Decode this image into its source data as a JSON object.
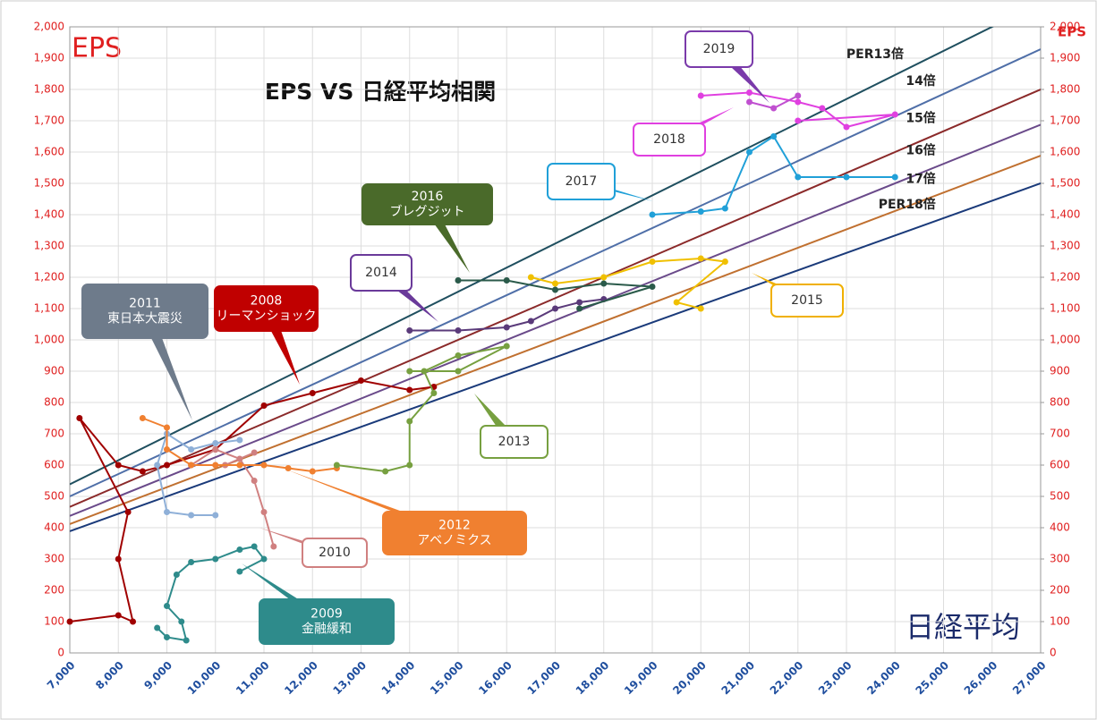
{
  "chart_data": {
    "type": "scatter",
    "title": "EPS VS 日経平均相関",
    "y_label": "EPS",
    "y2_label": "EPS",
    "x_label": "日経平均",
    "xlim": [
      7000,
      27000
    ],
    "xticks": [
      {
        "value": 7000,
        "label": "7,000"
      },
      {
        "value": 8000,
        "label": "8,000"
      },
      {
        "value": 9000,
        "label": "9,000"
      },
      {
        "value": 10000,
        "label": "10,000"
      },
      {
        "value": 11000,
        "label": "11,000"
      },
      {
        "value": 12000,
        "label": "12,000"
      },
      {
        "value": 13000,
        "label": "13,000"
      },
      {
        "value": 14000,
        "label": "14,000"
      },
      {
        "value": 15000,
        "label": "15,000"
      },
      {
        "value": 16000,
        "label": "16,000"
      },
      {
        "value": 17000,
        "label": "17,000"
      },
      {
        "value": 18000,
        "label": "18,000"
      },
      {
        "value": 19000,
        "label": "19,000"
      },
      {
        "value": 20000,
        "label": "20,000"
      },
      {
        "value": 21000,
        "label": "21,000"
      },
      {
        "value": 22000,
        "label": "22,000"
      },
      {
        "value": 23000,
        "label": "23,000"
      },
      {
        "value": 24000,
        "label": "24,000"
      },
      {
        "value": 25000,
        "label": "25,000"
      },
      {
        "value": 26000,
        "label": "26,000"
      },
      {
        "value": 27000,
        "label": "27,000"
      }
    ],
    "ylim": [
      0,
      2000
    ],
    "yticks": [
      0,
      100,
      200,
      300,
      400,
      500,
      600,
      700,
      800,
      900,
      {
        "value": 1000,
        "label": "1,000"
      },
      {
        "value": 1100,
        "label": "1,100"
      },
      {
        "value": 1200,
        "label": "1,200"
      },
      {
        "value": 1300,
        "label": "1,300"
      },
      {
        "value": 1400,
        "label": "1,400"
      },
      {
        "value": 1500,
        "label": "1,500"
      },
      {
        "value": 1600,
        "label": "1,600"
      },
      {
        "value": 1700,
        "label": "1,700"
      },
      {
        "value": 1800,
        "label": "1,800"
      },
      {
        "value": 1900,
        "label": "1,900"
      },
      {
        "value": 2000,
        "label": "2,000"
      }
    ],
    "y2lim": [
      0,
      2000
    ],
    "y2ticks": [
      0,
      100,
      200,
      300,
      400,
      500,
      600,
      700,
      800,
      900,
      {
        "value": 1000,
        "label": "1,000"
      },
      {
        "value": 1100,
        "label": "1,100"
      },
      {
        "value": 1200,
        "label": "1,200"
      },
      {
        "value": 1300,
        "label": "1,300"
      },
      {
        "value": 1400,
        "label": "1,400"
      },
      {
        "value": 1500,
        "label": "1,500"
      },
      {
        "value": 1600,
        "label": "1,600"
      },
      {
        "value": 1700,
        "label": "1,700"
      },
      {
        "value": 1800,
        "label": "1,800"
      },
      {
        "value": 1900,
        "label": "1,900"
      },
      {
        "value": 2000,
        "label": "2,000"
      }
    ],
    "grid": true,
    "per_lines": [
      {
        "label": "PER13倍",
        "per": 13,
        "color": "#1f4f5f"
      },
      {
        "label": "14倍",
        "per": 14,
        "color": "#4f6fa8"
      },
      {
        "label": "15倍",
        "per": 15,
        "color": "#8b2a2a"
      },
      {
        "label": "16倍",
        "per": 16,
        "color": "#6a4a8a"
      },
      {
        "label": "17倍",
        "per": 17,
        "color": "#c07030"
      },
      {
        "label": "PER18倍",
        "per": 18,
        "color": "#1a3a7a"
      }
    ],
    "series": [
      {
        "color": "#a00000",
        "x": [
          14500,
          14000,
          13000,
          12000,
          11000,
          10000,
          9000,
          8500,
          8000,
          7200,
          8200,
          8000,
          8300,
          8000,
          7000
        ],
        "y": [
          850,
          840,
          870,
          830,
          790,
          650,
          600,
          580,
          600,
          750,
          450,
          300,
          100,
          120,
          100
        ]
      },
      {
        "color": "#2e8b8b",
        "x": [
          8800,
          9000,
          9400,
          9300,
          9000,
          9200,
          9500,
          10000,
          10500,
          10800,
          11000,
          10500
        ],
        "y": [
          80,
          50,
          40,
          100,
          150,
          250,
          290,
          300,
          330,
          340,
          300,
          260
        ]
      },
      {
        "color": "#d08080",
        "x": [
          11200,
          11000,
          10800,
          10500,
          10000,
          9500,
          10200,
          10800
        ],
        "y": [
          340,
          450,
          550,
          620,
          650,
          600,
          600,
          640
        ]
      },
      {
        "color": "#8fb0d8",
        "x": [
          10500,
          10000,
          9500,
          9000,
          8800,
          9000,
          9500,
          10000
        ],
        "y": [
          680,
          670,
          650,
          700,
          600,
          450,
          440,
          440
        ]
      },
      {
        "color": "#f08030",
        "x": [
          8500,
          9000,
          9000,
          9500,
          10000,
          10500,
          11000,
          11500,
          12000,
          12500
        ],
        "y": [
          750,
          720,
          650,
          600,
          600,
          600,
          600,
          590,
          580,
          590
        ]
      },
      {
        "color": "#77a040",
        "x": [
          12500,
          13500,
          14000,
          14000,
          14500,
          14300,
          15000,
          16000,
          15000,
          14000
        ],
        "y": [
          600,
          580,
          600,
          740,
          830,
          900,
          950,
          980,
          900,
          900
        ]
      },
      {
        "color": "#5a3a7a",
        "x": [
          14000,
          15000,
          16000,
          16500,
          17000,
          17500,
          18000
        ],
        "y": [
          1030,
          1030,
          1040,
          1060,
          1100,
          1120,
          1130
        ]
      },
      {
        "color": "#f0c000",
        "x": [
          16500,
          17000,
          18000,
          19000,
          20000,
          20500,
          19500,
          20000
        ],
        "y": [
          1200,
          1180,
          1200,
          1250,
          1260,
          1250,
          1120,
          1100
        ]
      },
      {
        "color": "#2a5a4a",
        "x": [
          15000,
          16000,
          17000,
          18000,
          19000,
          17500
        ],
        "y": [
          1190,
          1190,
          1160,
          1180,
          1170,
          1100
        ]
      },
      {
        "color": "#20a0d8",
        "x": [
          19000,
          20000,
          20500,
          21000,
          21500,
          22000,
          23000,
          24000
        ],
        "y": [
          1400,
          1410,
          1420,
          1600,
          1650,
          1520,
          1520,
          1520
        ]
      },
      {
        "color": "#e040e0",
        "x": [
          20000,
          21000,
          22000,
          22500,
          23000,
          24000,
          22000
        ],
        "y": [
          1780,
          1790,
          1760,
          1740,
          1680,
          1720,
          1700
        ]
      },
      {
        "color": "#c050d0",
        "x": [
          21000,
          21500,
          22000
        ],
        "y": [
          1760,
          1740,
          1780
        ]
      }
    ],
    "annotations": [
      {
        "lines": [
          "2011",
          "東日本大震災"
        ]
      },
      {
        "lines": [
          "2008",
          "リーマンショック"
        ]
      },
      {
        "lines": [
          "2016",
          "ブレグジット"
        ]
      },
      {
        "lines": [
          "2014"
        ]
      },
      {
        "lines": [
          "2017"
        ]
      },
      {
        "lines": [
          "2018"
        ]
      },
      {
        "lines": [
          "2019"
        ]
      },
      {
        "lines": [
          "2015"
        ]
      },
      {
        "lines": [
          "2013"
        ]
      },
      {
        "lines": [
          "2012",
          "アベノミクス"
        ]
      },
      {
        "lines": [
          "2010"
        ]
      },
      {
        "lines": [
          "2009",
          "金融緩和"
        ]
      }
    ]
  }
}
